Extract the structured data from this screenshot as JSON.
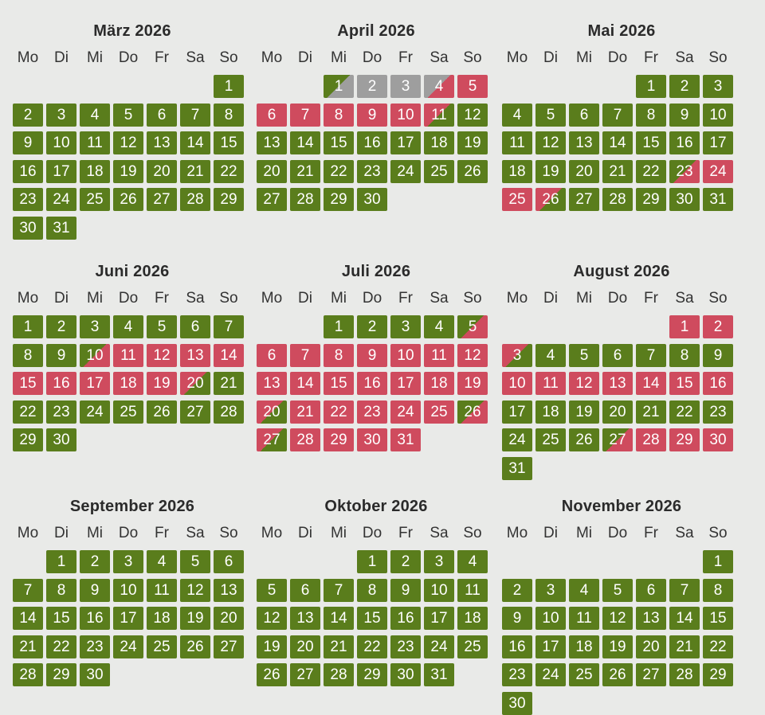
{
  "weekdays": [
    "Mo",
    "Di",
    "Mi",
    "Do",
    "Fr",
    "Sa",
    "So"
  ],
  "status_colors": {
    "free": "#5a7d1c",
    "booked": "#cf4b5e",
    "past": "#9e9e9e"
  },
  "months": [
    {
      "title": "März 2026",
      "first_weekday": 6,
      "days": 31,
      "special": {}
    },
    {
      "title": "April 2026",
      "first_weekday": 2,
      "days": 30,
      "special": {
        "1": "past-free",
        "2": "past",
        "3": "past",
        "4": "past-arrival",
        "5": "booked",
        "6": "booked",
        "7": "booked",
        "8": "booked",
        "9": "booked",
        "10": "booked",
        "11": "departure"
      }
    },
    {
      "title": "Mai 2026",
      "first_weekday": 4,
      "days": 31,
      "special": {
        "23": "arrival",
        "24": "booked",
        "25": "booked",
        "26": "departure"
      }
    },
    {
      "title": "Juni 2026",
      "first_weekday": 0,
      "days": 30,
      "special": {
        "10": "arrival",
        "11": "booked",
        "12": "booked",
        "13": "booked",
        "14": "booked",
        "15": "booked",
        "16": "booked",
        "17": "booked",
        "18": "booked",
        "19": "booked",
        "20": "departure"
      }
    },
    {
      "title": "Juli 2026",
      "first_weekday": 2,
      "days": 31,
      "special": {
        "5": "arrival",
        "6": "booked",
        "7": "booked",
        "8": "booked",
        "9": "booked",
        "10": "booked",
        "11": "booked",
        "12": "booked",
        "13": "booked",
        "14": "booked",
        "15": "booked",
        "16": "booked",
        "17": "booked",
        "18": "booked",
        "19": "booked",
        "20": "departure",
        "21": "booked",
        "22": "booked",
        "23": "booked",
        "24": "booked",
        "25": "booked",
        "26": "arrival",
        "27": "departure",
        "28": "booked",
        "29": "booked",
        "30": "booked",
        "31": "booked"
      }
    },
    {
      "title": "August 2026",
      "first_weekday": 5,
      "days": 31,
      "special": {
        "1": "booked",
        "2": "booked",
        "3": "departure",
        "10": "booked",
        "11": "booked",
        "12": "booked",
        "13": "booked",
        "14": "booked",
        "15": "booked",
        "16": "booked",
        "27": "arrival",
        "28": "booked",
        "29": "booked",
        "30": "booked"
      }
    },
    {
      "title": "September 2026",
      "first_weekday": 1,
      "days": 30,
      "special": {}
    },
    {
      "title": "Oktober 2026",
      "first_weekday": 3,
      "days": 31,
      "special": {}
    },
    {
      "title": "November 2026",
      "first_weekday": 6,
      "days": 30,
      "special": {}
    }
  ]
}
